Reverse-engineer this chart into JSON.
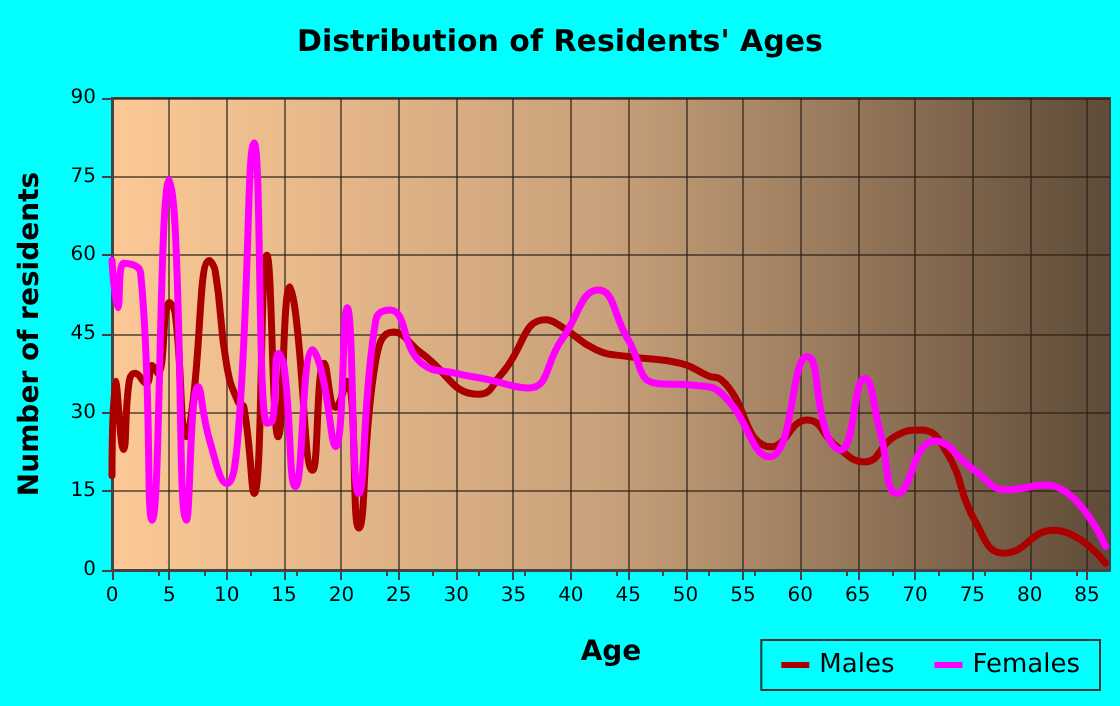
{
  "chart_data": {
    "type": "line",
    "title": "Distribution of Residents' Ages",
    "xlabel": "Age",
    "ylabel": "Number of residents",
    "xlim": [
      0,
      87
    ],
    "xticks": [
      0,
      5,
      10,
      15,
      20,
      25,
      30,
      35,
      40,
      45,
      50,
      55,
      60,
      65,
      70,
      75,
      80,
      85
    ],
    "ylim": [
      0,
      90
    ],
    "yticks": [
      0,
      15,
      30,
      45,
      60,
      75,
      90
    ],
    "grid": true,
    "legend": "bottom right",
    "marker": "none",
    "line_style": "solid",
    "series": [
      {
        "name": "Males",
        "color": "#aa0000",
        "x": [
          0,
          0.3,
          1,
          1.5,
          2,
          3,
          3.5,
          4,
          5,
          5.5,
          6.5,
          7,
          8.5,
          9,
          10,
          11,
          11.5,
          12.4,
          13.5,
          14.5,
          15.5,
          16,
          17.5,
          18.5,
          19.5,
          20.5,
          21.5,
          23,
          24.5,
          27,
          32,
          34,
          37.8,
          39.2,
          42.2,
          45,
          49.6,
          52,
          53.1,
          57.5,
          60.6,
          63.2,
          65.6,
          68.2,
          70.5,
          72.8,
          75.2,
          77.8,
          82.1,
          86.6
        ],
        "values": [
          18,
          36,
          23,
          36,
          37.5,
          35.6,
          39,
          37.5,
          51,
          49,
          25.4,
          31,
          59,
          57,
          39,
          32,
          31,
          14.6,
          60,
          25.4,
          54,
          49,
          19,
          39.4,
          31,
          36,
          8,
          40,
          45.4,
          41.3,
          33.5,
          37.5,
          47.7,
          46.4,
          42,
          40.7,
          39.4,
          37,
          36.3,
          23.5,
          28.6,
          23.5,
          20.6,
          25.4,
          26.7,
          22.3,
          9.5,
          3.2,
          7.6,
          1.3
        ]
      },
      {
        "name": "Females",
        "color": "#ff00ff",
        "x": [
          0,
          0.5,
          1,
          2.5,
          3.5,
          5,
          5.5,
          6.5,
          7.5,
          8.5,
          10,
          11,
          12.4,
          13.5,
          14,
          14.5,
          15,
          16,
          17.5,
          18.3,
          19.5,
          20.5,
          21.5,
          23,
          24.2,
          27,
          30,
          32.8,
          36.3,
          39.2,
          42.4,
          45,
          47.4,
          50.9,
          53.1,
          57.3,
          60.6,
          62.3,
          63.5,
          65.6,
          67,
          68.5,
          71.7,
          75.2,
          78,
          81.4,
          86.6
        ],
        "values": [
          59,
          50,
          58.5,
          56.6,
          9.5,
          74.4,
          65.5,
          9.5,
          35,
          24.8,
          16.5,
          26,
          81.4,
          28,
          28.6,
          41.3,
          38.8,
          15.9,
          42,
          37.5,
          23.5,
          50,
          14.6,
          47.7,
          49.6,
          39.4,
          37.5,
          36.3,
          34.7,
          43.9,
          53.4,
          43.9,
          35.6,
          35.2,
          33.7,
          21.6,
          40.7,
          26,
          22.9,
          36.5,
          26,
          14.6,
          24.6,
          19,
          15.3,
          16.2,
          4.5
        ]
      }
    ]
  }
}
